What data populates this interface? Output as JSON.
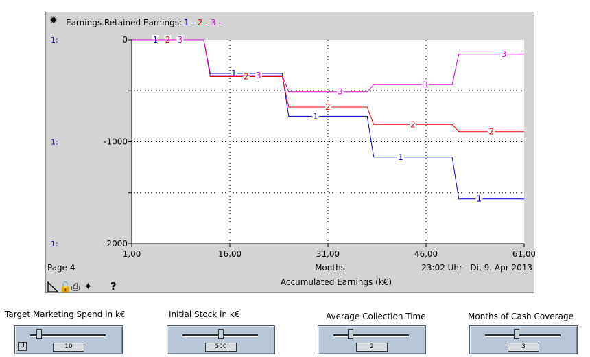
{
  "graph": {
    "title_prefix": "Earnings.Retained Earnings: ",
    "title_series": [
      {
        "text": "1 -",
        "color": "#0000cc"
      },
      {
        "text": "2 -",
        "color": "#ee0000"
      },
      {
        "text": "3 -",
        "color": "#dd00dd"
      }
    ],
    "page_label": "Page 4",
    "timestamp": "23:02 Uhr   Di, 9. Apr 2013",
    "subtitle": "Accumulated Earnings (k€)",
    "toolbar_icons": [
      "pin-icon",
      "lock-icon",
      "print-icon",
      "magic-wand-icon",
      "help-icon"
    ],
    "help_glyph": "?"
  },
  "chart_data": {
    "type": "line",
    "xlabel": "Months",
    "x_ticks": [
      "1,00",
      "16,00",
      "31,00",
      "46,00",
      "61,00"
    ],
    "y_ticks": [
      "0",
      "-1000",
      "-2000"
    ],
    "y_axis_prefix": "1:",
    "xlim": [
      1,
      61
    ],
    "ylim": [
      -2000,
      0
    ],
    "grid": true,
    "series": [
      {
        "marker": "1",
        "color": "#0000cc",
        "points": [
          [
            1,
            0
          ],
          [
            12,
            0
          ],
          [
            13,
            -330
          ],
          [
            24,
            -330
          ],
          [
            25,
            -750
          ],
          [
            37,
            -750
          ],
          [
            38,
            -1150
          ],
          [
            50,
            -1150
          ],
          [
            51,
            -1560
          ],
          [
            61,
            -1560
          ]
        ]
      },
      {
        "marker": "2",
        "color": "#ee0000",
        "points": [
          [
            1,
            0
          ],
          [
            12,
            0
          ],
          [
            13,
            -360
          ],
          [
            24,
            -360
          ],
          [
            25,
            -660
          ],
          [
            37,
            -660
          ],
          [
            38,
            -830
          ],
          [
            50,
            -830
          ],
          [
            51,
            -900
          ],
          [
            61,
            -900
          ]
        ]
      },
      {
        "marker": "3",
        "color": "#dd00dd",
        "points": [
          [
            1,
            0
          ],
          [
            12,
            0
          ],
          [
            13,
            -350
          ],
          [
            24,
            -350
          ],
          [
            25,
            -510
          ],
          [
            37,
            -510
          ],
          [
            38,
            -440
          ],
          [
            50,
            -440
          ],
          [
            51,
            -140
          ],
          [
            61,
            -140
          ]
        ]
      }
    ]
  },
  "sliders": [
    {
      "label": "Target Marketing Spend in k€",
      "value": "10",
      "has_u_button": true,
      "u_label": "U",
      "position": 0.09
    },
    {
      "label": "Initial Stock in k€",
      "value": "500",
      "has_u_button": false,
      "position": 0.5
    },
    {
      "label": "Average Collection Time",
      "value": "2",
      "has_u_button": false,
      "position": 0.2
    },
    {
      "label": "Months of Cash Coverage",
      "value": "3",
      "has_u_button": false,
      "position": 0.4
    }
  ]
}
